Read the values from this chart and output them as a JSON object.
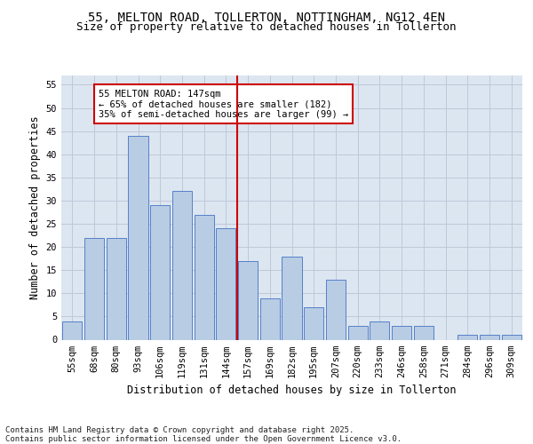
{
  "title1": "55, MELTON ROAD, TOLLERTON, NOTTINGHAM, NG12 4EN",
  "title2": "Size of property relative to detached houses in Tollerton",
  "xlabel": "Distribution of detached houses by size in Tollerton",
  "ylabel": "Number of detached properties",
  "categories": [
    "55sqm",
    "68sqm",
    "80sqm",
    "93sqm",
    "106sqm",
    "119sqm",
    "131sqm",
    "144sqm",
    "157sqm",
    "169sqm",
    "182sqm",
    "195sqm",
    "207sqm",
    "220sqm",
    "233sqm",
    "246sqm",
    "258sqm",
    "271sqm",
    "284sqm",
    "296sqm",
    "309sqm"
  ],
  "values": [
    4,
    22,
    22,
    44,
    29,
    32,
    27,
    24,
    17,
    9,
    18,
    7,
    13,
    3,
    4,
    3,
    3,
    0,
    1,
    1,
    1
  ],
  "bar_color": "#b8cce4",
  "bar_edge_color": "#4472c4",
  "grid_color": "#c0c8d8",
  "background_color": "#dce6f1",
  "vline_x_index": 7.5,
  "vline_color": "#cc0000",
  "annotation_text": "55 MELTON ROAD: 147sqm\n← 65% of detached houses are smaller (182)\n35% of semi-detached houses are larger (99) →",
  "annotation_box_color": "#ffffff",
  "annotation_box_edge": "#cc0000",
  "ylim": [
    0,
    57
  ],
  "yticks": [
    0,
    5,
    10,
    15,
    20,
    25,
    30,
    35,
    40,
    45,
    50,
    55
  ],
  "footer": "Contains HM Land Registry data © Crown copyright and database right 2025.\nContains public sector information licensed under the Open Government Licence v3.0.",
  "title_fontsize": 10,
  "subtitle_fontsize": 9,
  "tick_fontsize": 7.5,
  "label_fontsize": 8.5,
  "footer_fontsize": 6.5
}
